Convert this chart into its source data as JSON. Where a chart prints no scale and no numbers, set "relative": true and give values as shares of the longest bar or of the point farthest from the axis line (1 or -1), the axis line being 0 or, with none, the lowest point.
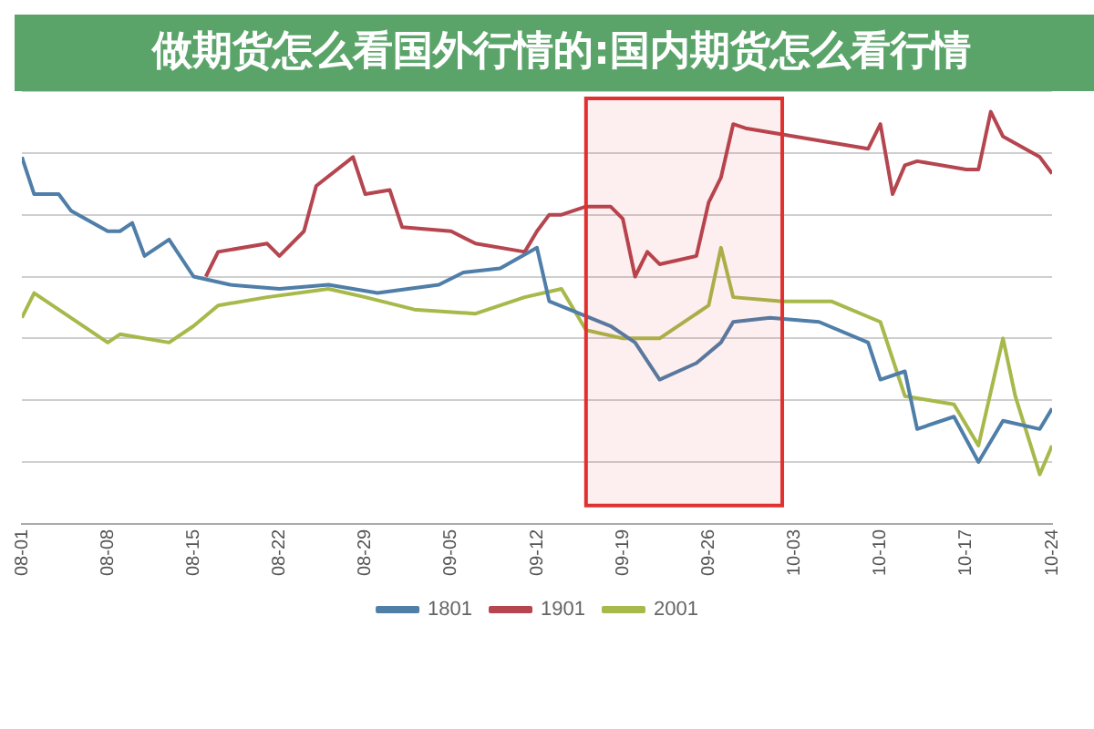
{
  "chart_data": {
    "type": "line",
    "title": "做期货怎么看国外行情的:国内期货怎么看行情",
    "relative": true,
    "grid": "y",
    "legend": "bottom",
    "marker": "none",
    "line_style": "solid",
    "xlim": [
      "--08-01",
      "--10-24"
    ],
    "xticks": [
      {
        "value": "--08-01",
        "label": "08-01"
      },
      {
        "value": "--08-08",
        "label": "08-08"
      },
      {
        "value": "--08-15",
        "label": "08-15"
      },
      {
        "value": "--08-22",
        "label": "08-22"
      },
      {
        "value": "--08-29",
        "label": "08-29"
      },
      {
        "value": "--09-05",
        "label": "09-05"
      },
      {
        "value": "--09-12",
        "label": "09-12"
      },
      {
        "value": "--09-19",
        "label": "09-19"
      },
      {
        "value": "--09-26",
        "label": "09-26"
      },
      {
        "value": "--10-03",
        "label": "10-03"
      },
      {
        "value": "--10-10",
        "label": "10-10"
      },
      {
        "value": "--10-17",
        "label": "10-17"
      },
      {
        "value": "--10-24",
        "label": "10-24"
      }
    ],
    "bands": [
      {
        "axis": "x",
        "from": "--09-16",
        "to": "--10-02",
        "color": "#e03030"
      }
    ],
    "series": [
      {
        "name": "1801",
        "color": "#4f7ea8",
        "x": [
          "--08-01",
          "--08-02",
          "--08-04",
          "--08-05",
          "--08-08",
          "--08-09",
          "--08-10",
          "--08-11",
          "--08-13",
          "--08-15",
          "--08-18",
          "--08-22",
          "--08-26",
          "--08-30",
          "--09-04",
          "--09-06",
          "--09-09",
          "--09-12",
          "--09-13",
          "--09-18",
          "--09-20",
          "--09-22",
          "--09-25",
          "--09-27",
          "--09-28",
          "--10-01",
          "--10-05",
          "--10-09",
          "--10-10",
          "--10-12",
          "--10-13",
          "--10-16",
          "--10-18",
          "--10-20",
          "--10-23",
          "--10-24"
        ],
        "values": [
          0.89,
          0.8,
          0.8,
          0.76,
          0.71,
          0.71,
          0.73,
          0.65,
          0.69,
          0.6,
          0.58,
          0.57,
          0.58,
          0.56,
          0.58,
          0.61,
          0.62,
          0.67,
          0.54,
          0.48,
          0.44,
          0.35,
          0.39,
          0.44,
          0.49,
          0.5,
          0.49,
          0.44,
          0.35,
          0.37,
          0.23,
          0.26,
          0.15,
          0.25,
          0.23,
          0.28
        ]
      },
      {
        "name": "1901",
        "color": "#b5454f",
        "x": [
          "--08-16",
          "--08-17",
          "--08-21",
          "--08-22",
          "--08-24",
          "--08-25",
          "--08-28",
          "--08-29",
          "--08-31",
          "--09-01",
          "--09-05",
          "--09-07",
          "--09-11",
          "--09-12",
          "--09-13",
          "--09-14",
          "--09-16",
          "--09-18",
          "--09-19",
          "--09-20",
          "--09-21",
          "--09-22",
          "--09-25",
          "--09-26",
          "--09-27",
          "--09-28",
          "--09-29",
          "--10-09",
          "--10-10",
          "--10-11",
          "--10-12",
          "--10-13",
          "--10-17",
          "--10-18",
          "--10-19",
          "--10-20",
          "--10-23",
          "--10-24"
        ],
        "values": [
          0.6,
          0.66,
          0.68,
          0.65,
          0.71,
          0.82,
          0.89,
          0.8,
          0.81,
          0.72,
          0.71,
          0.68,
          0.66,
          0.71,
          0.75,
          0.75,
          0.77,
          0.77,
          0.74,
          0.6,
          0.66,
          0.63,
          0.65,
          0.78,
          0.84,
          0.97,
          0.96,
          0.91,
          0.97,
          0.8,
          0.87,
          0.88,
          0.86,
          0.86,
          1,
          0.94,
          0.89,
          0.85
        ]
      },
      {
        "name": "2001",
        "color": "#a6b94a",
        "x": [
          "--08-01",
          "--08-02",
          "--08-08",
          "--08-09",
          "--08-13",
          "--08-15",
          "--08-17",
          "--08-21",
          "--08-26",
          "--08-29",
          "--09-02",
          "--09-07",
          "--09-11",
          "--09-14",
          "--09-16",
          "--09-19",
          "--09-22",
          "--09-26",
          "--09-27",
          "--09-28",
          "--10-02",
          "--10-06",
          "--10-10",
          "--10-12",
          "--10-14",
          "--10-16",
          "--10-18",
          "--10-20",
          "--10-21",
          "--10-23",
          "--10-24"
        ],
        "values": [
          0.5,
          0.56,
          0.44,
          0.46,
          0.44,
          0.48,
          0.53,
          0.55,
          0.57,
          0.55,
          0.52,
          0.51,
          0.55,
          0.57,
          0.47,
          0.45,
          0.45,
          0.53,
          0.67,
          0.55,
          0.54,
          0.54,
          0.49,
          0.31,
          0.3,
          0.29,
          0.19,
          0.45,
          0.31,
          0.12,
          0.19
        ]
      }
    ]
  }
}
